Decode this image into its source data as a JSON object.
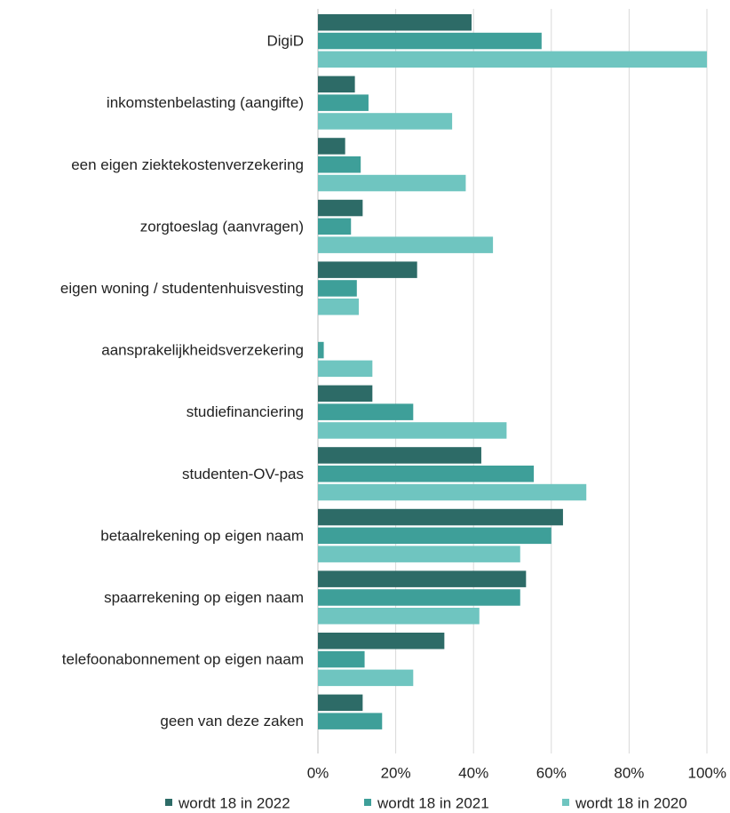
{
  "chart_data": {
    "type": "bar",
    "orientation": "horizontal",
    "title": "",
    "xlabel": "",
    "ylabel": "",
    "xlim": [
      0,
      100
    ],
    "x_ticks": [
      "0%",
      "20%",
      "40%",
      "60%",
      "80%",
      "100%"
    ],
    "grid": true,
    "legend_position": "bottom",
    "categories": [
      "DigiD",
      "inkomstenbelasting (aangifte)",
      "een eigen ziektekostenverzekering",
      "zorgtoeslag (aanvragen)",
      "eigen woning / studentenhuisvesting",
      "aansprakelijkheidsverzekering",
      "studiefinanciering",
      "studenten-OV-pas",
      "betaalrekening op eigen naam",
      "spaarrekening op eigen naam",
      "telefoonabonnement op eigen naam",
      "geen van deze zaken"
    ],
    "series": [
      {
        "name": "wordt 18 in 2022",
        "color": "#2d6b67",
        "values": [
          39.5,
          9.5,
          7,
          11.5,
          25.5,
          0,
          14,
          42,
          63,
          53.5,
          32.5,
          11.5
        ]
      },
      {
        "name": "wordt 18 in 2021",
        "color": "#3e9f99",
        "values": [
          57.5,
          13,
          11,
          8.5,
          10,
          1.5,
          24.5,
          55.5,
          60,
          52,
          12,
          16.5
        ]
      },
      {
        "name": "wordt 18 in 2020",
        "color": "#6fc5c0",
        "values": [
          100,
          34.5,
          38,
          45,
          10.5,
          14,
          48.5,
          69,
          52,
          41.5,
          24.5,
          0
        ]
      }
    ]
  }
}
